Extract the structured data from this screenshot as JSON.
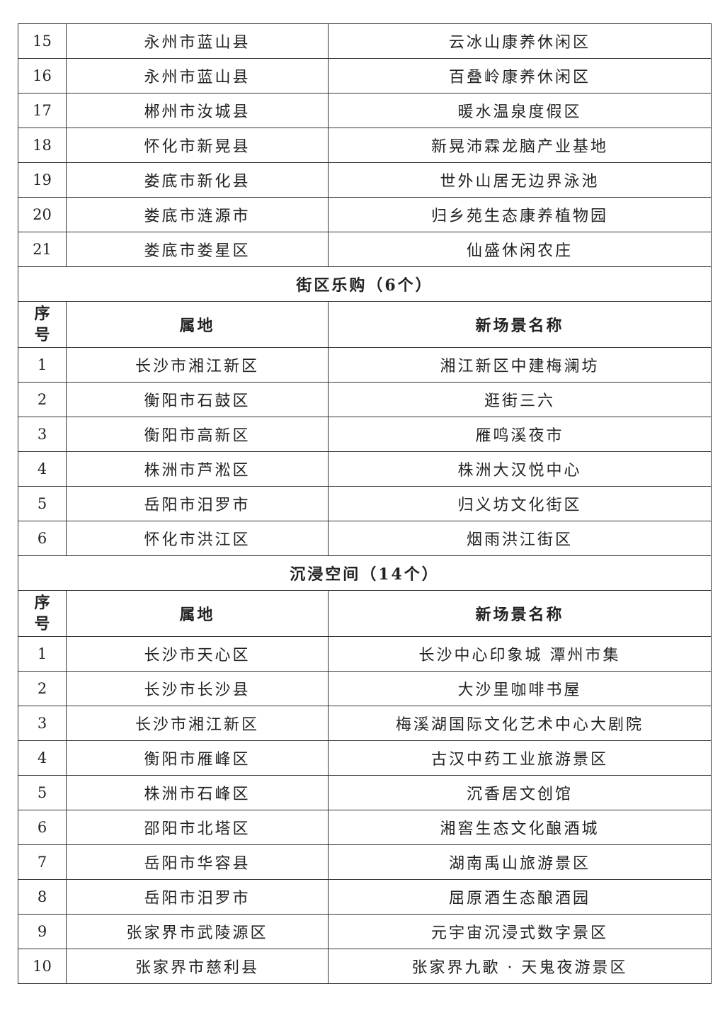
{
  "table": {
    "rows_top": [
      {
        "no": "15",
        "place": "永州市蓝山县",
        "name": "云冰山康养休闲区"
      },
      {
        "no": "16",
        "place": "永州市蓝山县",
        "name": "百叠岭康养休闲区"
      },
      {
        "no": "17",
        "place": "郴州市汝城县",
        "name": "暖水温泉度假区"
      },
      {
        "no": "18",
        "place": "怀化市新晃县",
        "name": "新晃沛霖龙脑产业基地"
      },
      {
        "no": "19",
        "place": "娄底市新化县",
        "name": "世外山居无边界泳池"
      },
      {
        "no": "20",
        "place": "娄底市涟源市",
        "name": "归乡苑生态康养植物园"
      },
      {
        "no": "21",
        "place": "娄底市娄星区",
        "name": "仙盛休闲农庄"
      }
    ],
    "sections": [
      {
        "title": "街区乐购（6个）",
        "header": {
          "no": "序号",
          "place": "属地",
          "name": "新场景名称"
        },
        "rows": [
          {
            "no": "1",
            "place": "长沙市湘江新区",
            "name": "湘江新区中建梅澜坊"
          },
          {
            "no": "2",
            "place": "衡阳市石鼓区",
            "name": "逛街三六"
          },
          {
            "no": "3",
            "place": "衡阳市高新区",
            "name": "雁鸣溪夜市"
          },
          {
            "no": "4",
            "place": "株洲市芦淞区",
            "name": "株洲大汉悦中心"
          },
          {
            "no": "5",
            "place": "岳阳市汨罗市",
            "name": "归义坊文化街区"
          },
          {
            "no": "6",
            "place": "怀化市洪江区",
            "name": "烟雨洪江街区"
          }
        ]
      },
      {
        "title": "沉浸空间（14个）",
        "header": {
          "no": "序号",
          "place": "属地",
          "name": "新场景名称"
        },
        "rows": [
          {
            "no": "1",
            "place": "长沙市天心区",
            "name": "长沙中心印象城 潭州市集"
          },
          {
            "no": "2",
            "place": "长沙市长沙县",
            "name": "大沙里咖啡书屋"
          },
          {
            "no": "3",
            "place": "长沙市湘江新区",
            "name": "梅溪湖国际文化艺术中心大剧院"
          },
          {
            "no": "4",
            "place": "衡阳市雁峰区",
            "name": "古汉中药工业旅游景区"
          },
          {
            "no": "5",
            "place": "株洲市石峰区",
            "name": "沉香居文创馆"
          },
          {
            "no": "6",
            "place": "邵阳市北塔区",
            "name": "湘窖生态文化酿酒城"
          },
          {
            "no": "7",
            "place": "岳阳市华容县",
            "name": "湖南禹山旅游景区"
          },
          {
            "no": "8",
            "place": "岳阳市汨罗市",
            "name": "屈原酒生态酿酒园"
          },
          {
            "no": "9",
            "place": "张家界市武陵源区",
            "name": "元宇宙沉浸式数字景区"
          },
          {
            "no": "10",
            "place": "张家界市慈利县",
            "name": "张家界九歌 · 天鬼夜游景区"
          }
        ]
      }
    ]
  }
}
